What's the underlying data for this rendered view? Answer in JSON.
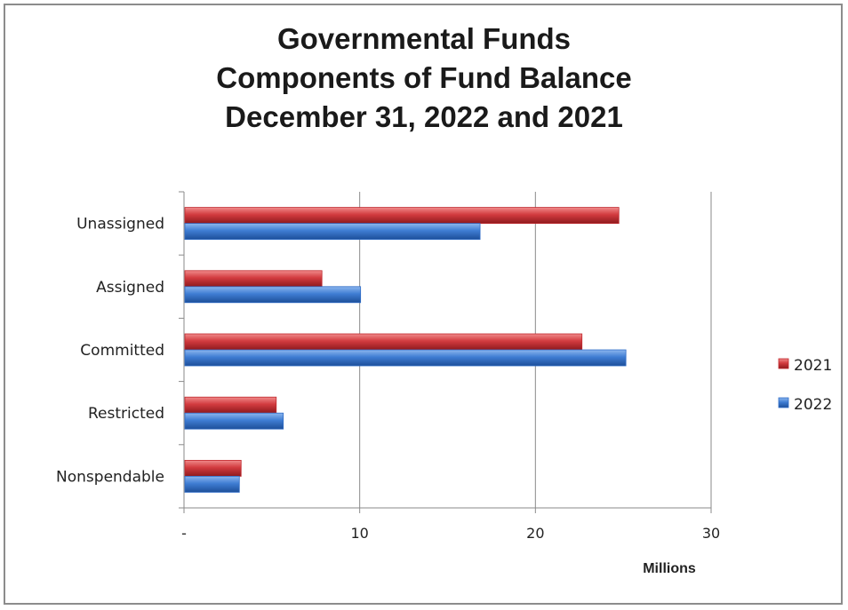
{
  "chart_data": {
    "type": "bar",
    "orientation": "horizontal",
    "title_lines": [
      "Governmental Funds",
      "Components of Fund Balance",
      "December 31, 2022 and 2021"
    ],
    "categories": [
      "Unassigned",
      "Assigned",
      "Committed",
      "Restricted",
      "Nonspendable"
    ],
    "series": [
      {
        "name": "2021",
        "color": "#c0282d",
        "values": [
          24.7,
          7.8,
          22.6,
          5.2,
          3.2
        ]
      },
      {
        "name": "2022",
        "color": "#2e6bc6",
        "values": [
          16.8,
          10.0,
          25.1,
          5.6,
          3.1
        ]
      }
    ],
    "xlabel": "Millions",
    "ylabel": "",
    "xlim": [
      0,
      30
    ],
    "x_ticks": [
      0,
      10,
      20,
      30
    ],
    "x_tick_labels": [
      "-",
      "10",
      "20",
      "30"
    ],
    "grid": "vertical",
    "legend_position": "right"
  }
}
